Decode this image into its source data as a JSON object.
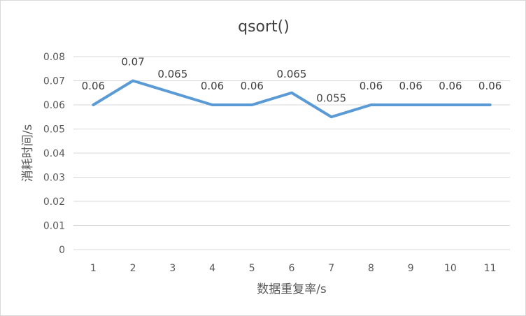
{
  "chart_data": {
    "type": "line",
    "title": "qsort()",
    "xlabel": "数据重复率/s",
    "ylabel": "消耗时间/s",
    "categories": [
      "1",
      "2",
      "3",
      "4",
      "5",
      "6",
      "7",
      "8",
      "9",
      "10",
      "11"
    ],
    "series": [
      {
        "values": [
          0.06,
          0.07,
          0.065,
          0.06,
          0.06,
          0.065,
          0.055,
          0.06,
          0.06,
          0.06,
          0.06
        ],
        "color": "#5b9bd5"
      }
    ],
    "data_labels": [
      "0.06",
      "0.07",
      "0.065",
      "0.06",
      "0.06",
      "0.065",
      "0.055",
      "0.06",
      "0.06",
      "0.06",
      "0.06"
    ],
    "y_ticks": [
      "0",
      "0.01",
      "0.02",
      "0.03",
      "0.04",
      "0.05",
      "0.06",
      "0.07",
      "0.08"
    ],
    "ylim": [
      0,
      0.08
    ],
    "grid": true,
    "legend": "none"
  }
}
